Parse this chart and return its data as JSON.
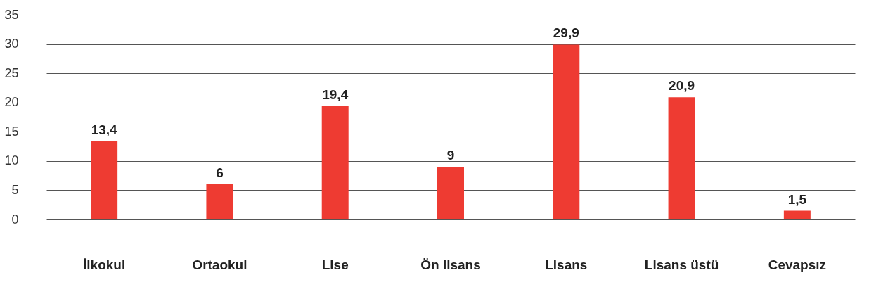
{
  "chart_data": {
    "type": "bar",
    "categories": [
      "İlkokul",
      "Ortaokul",
      "Lise",
      "Ön lisans",
      "Lisans",
      "Lisans üstü",
      "Cevapsız"
    ],
    "values": [
      13.4,
      6,
      19.4,
      9,
      29.9,
      20.9,
      1.5
    ],
    "value_labels": [
      "13,4",
      "6",
      "19,4",
      "9",
      "29,9",
      "20,9",
      "1,5"
    ],
    "color": "#ee3b32",
    "ylim": [
      0,
      35
    ],
    "yticks": [
      0,
      5,
      10,
      15,
      20,
      25,
      30,
      35
    ],
    "grid": "y"
  }
}
